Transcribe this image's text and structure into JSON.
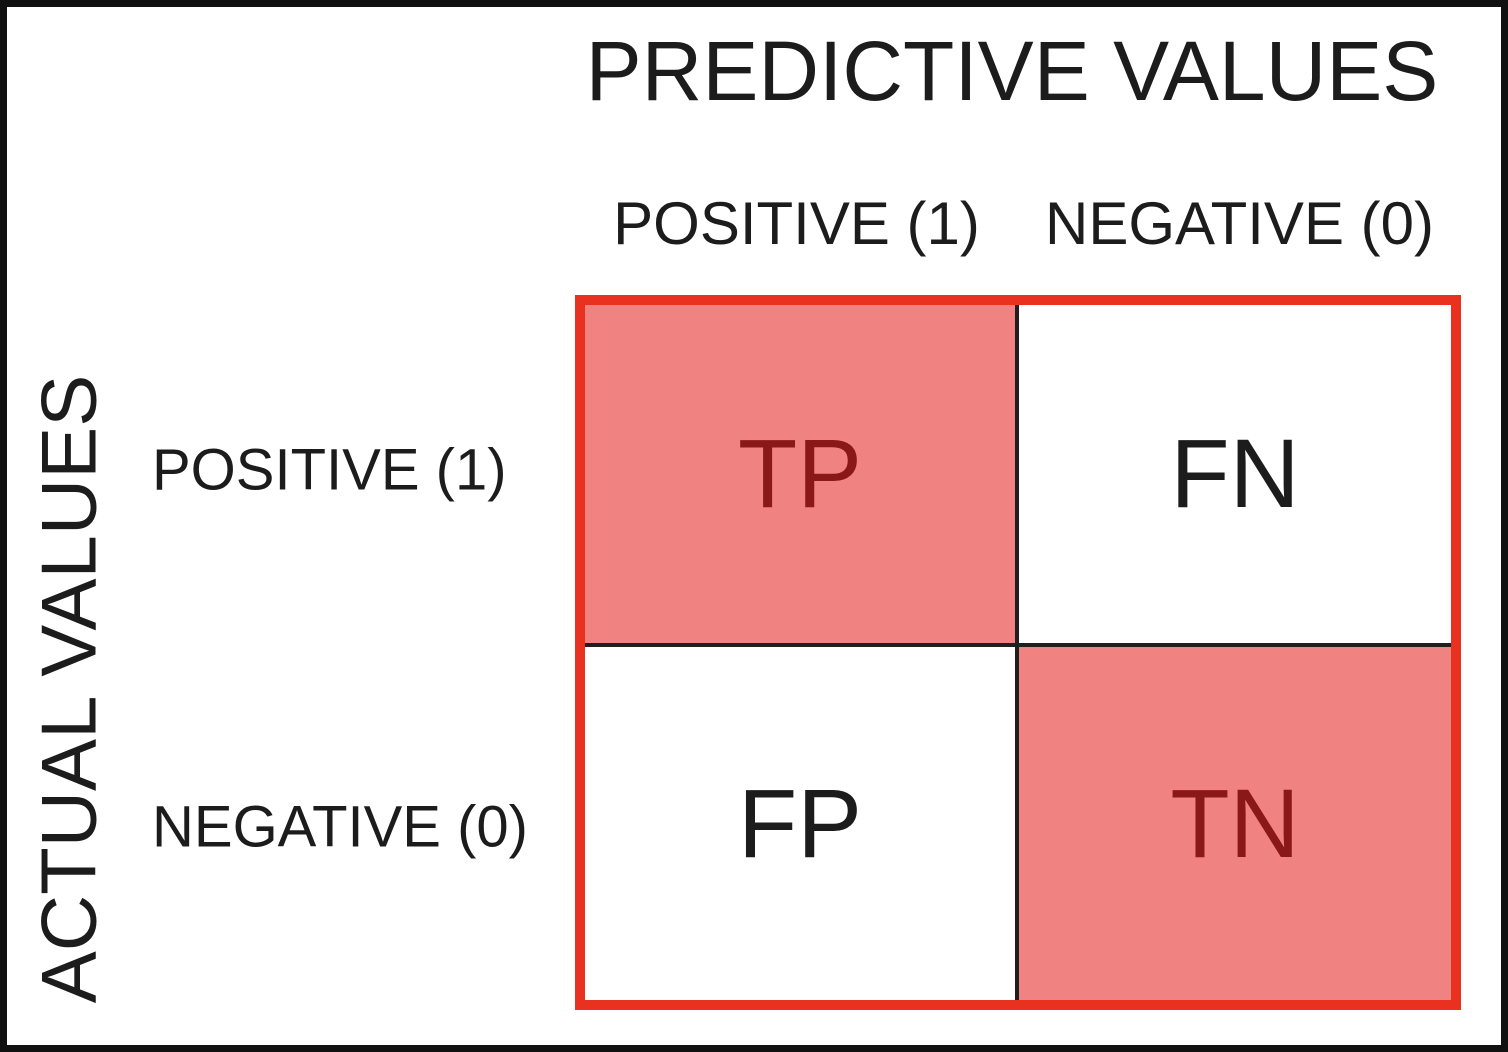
{
  "diagram": {
    "title": "PREDICTIVE VALUES",
    "y_axis_label": "ACTUAL VALUES",
    "columns": [
      {
        "label": "POSITIVE (1)"
      },
      {
        "label": "NEGATIVE (0)"
      }
    ],
    "rows": [
      {
        "label": "POSITIVE (1)"
      },
      {
        "label": "NEGATIVE (0)"
      }
    ],
    "cells": {
      "tp": {
        "label": "TP",
        "highlighted": true
      },
      "fn": {
        "label": "FN",
        "highlighted": false
      },
      "fp": {
        "label": "FP",
        "highlighted": false
      },
      "tn": {
        "label": "TN",
        "highlighted": true
      }
    },
    "colors": {
      "highlight_fill": "#f08282",
      "highlight_text": "#8b1818",
      "matrix_border": "#e8321f",
      "grid_line": "#1f1f1f",
      "text": "#1c1c1c",
      "frame": "#111111",
      "bg": "#ffffff"
    }
  }
}
